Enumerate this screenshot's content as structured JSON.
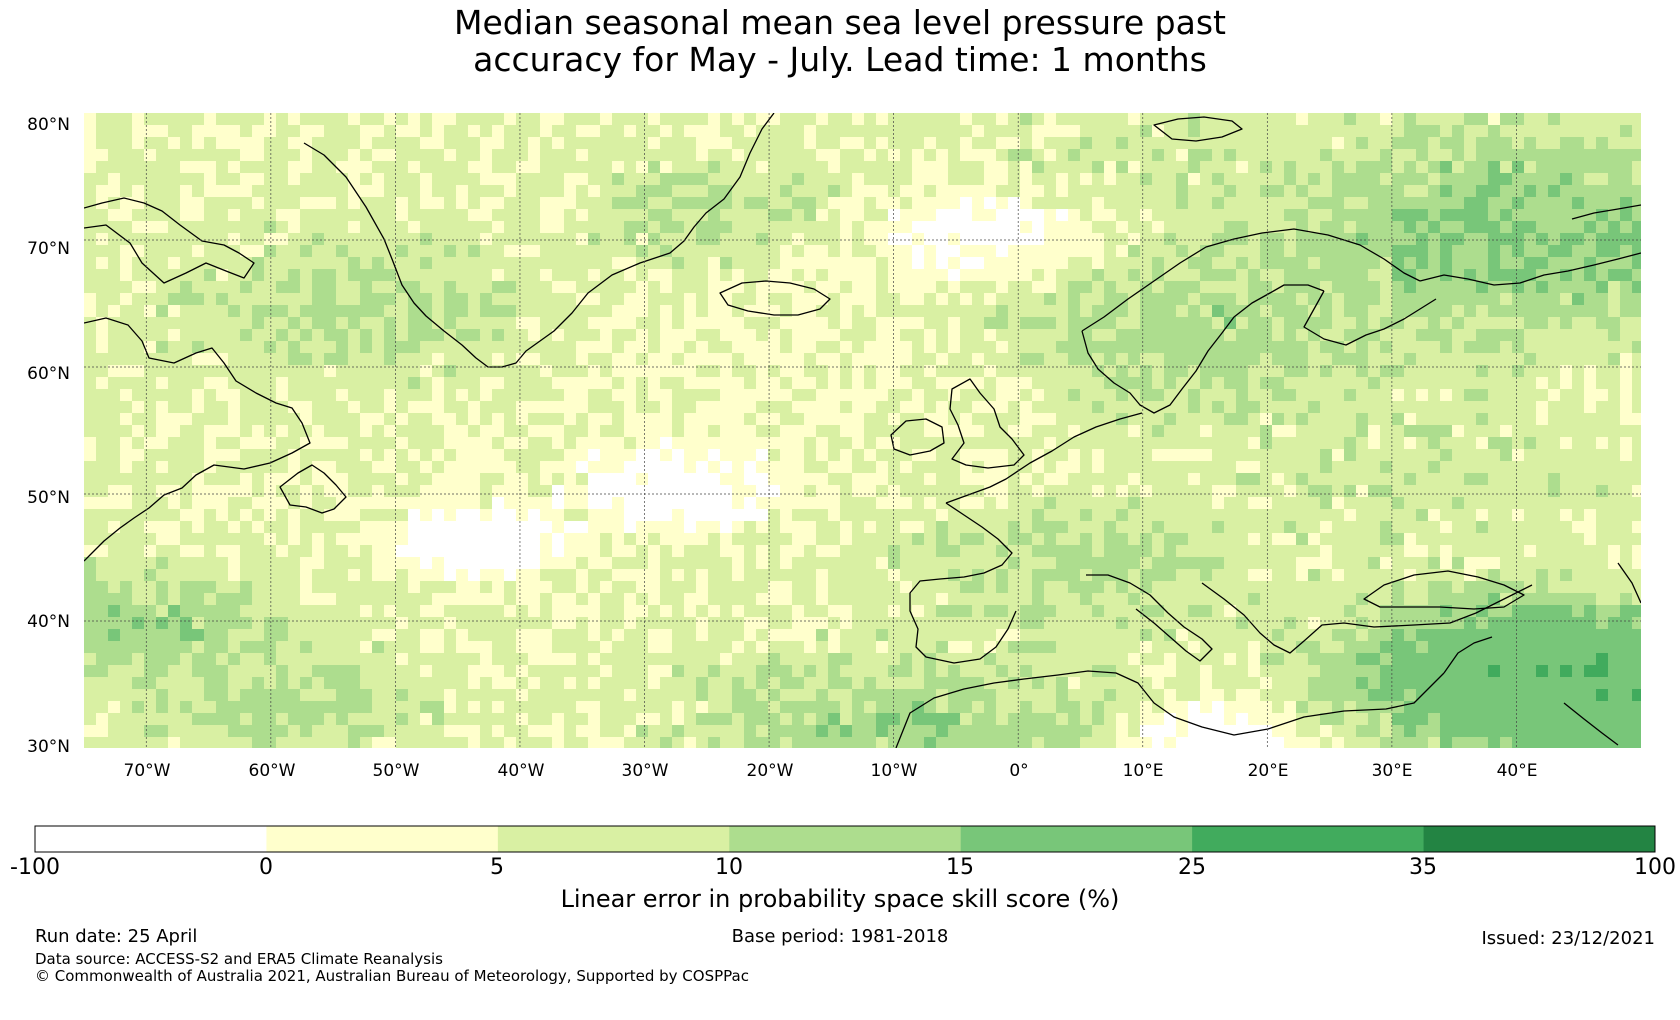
{
  "title": {
    "line1": "Median seasonal mean sea level pressure past",
    "line2": "accuracy for May - July. Lead time: 1 months"
  },
  "map": {
    "lat_range": [
      30,
      80
    ],
    "lon_range": [
      -75,
      50
    ],
    "lat_labels": [
      "80°N",
      "70°N",
      "60°N",
      "50°N",
      "40°N",
      "30°N"
    ],
    "lon_labels": [
      "70°W",
      "60°W",
      "50°W",
      "40°W",
      "30°W",
      "20°W",
      "10°W",
      "0°",
      "10°E",
      "20°E",
      "30°E",
      "40°E"
    ],
    "gridlines": true
  },
  "colorbar": {
    "label": "Linear error in probability space skill score (%)",
    "ticks": [
      "-100",
      "0",
      "5",
      "10",
      "15",
      "25",
      "35",
      "100"
    ],
    "bins": [
      {
        "from": -100,
        "to": 0,
        "color": "#ffffff"
      },
      {
        "from": 0,
        "to": 5,
        "color": "#ffffcc"
      },
      {
        "from": 5,
        "to": 10,
        "color": "#d9f0a3"
      },
      {
        "from": 10,
        "to": 15,
        "color": "#addd8e"
      },
      {
        "from": 15,
        "to": 25,
        "color": "#78c679"
      },
      {
        "from": 25,
        "to": 35,
        "color": "#41ab5d"
      },
      {
        "from": 35,
        "to": 100,
        "color": "#238443"
      }
    ]
  },
  "footer": {
    "run_date": "Run date: 25 April",
    "base_period": "Base period: 1981-2018",
    "issued": "Issued: 23/12/2021",
    "data_source": "Data source: ACCESS-S2 and ERA5 Climate Reanalysis",
    "copyright": "© Commonwealth of Australia 2021, Australian Bureau of Meteorology, Supported by COSPPac"
  }
}
